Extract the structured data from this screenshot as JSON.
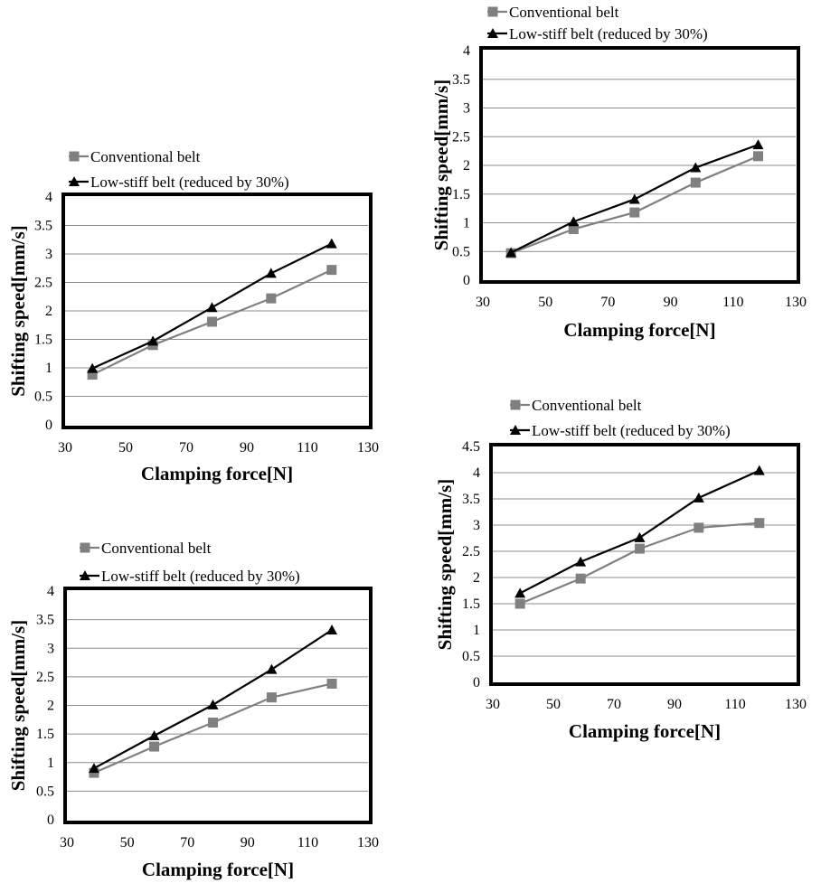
{
  "chart_data": [
    {
      "type": "line",
      "title": "",
      "xlabel": "Clamping force[N]",
      "ylabel": "Shifting speed[mm/s]",
      "xlim": [
        30,
        130
      ],
      "ylim": [
        0,
        4
      ],
      "xticks": [
        30,
        50,
        70,
        90,
        110,
        130
      ],
      "yticks": [
        0,
        0.5,
        1,
        1.5,
        2,
        2.5,
        3,
        3.5,
        4
      ],
      "ytick_labels": [
        "0",
        "0.5",
        "1",
        "1.5",
        "2",
        "2.5",
        "3",
        "3.5",
        "4"
      ],
      "grid": "horizontal",
      "legend": "top",
      "series": [
        {
          "name": "Conventional belt",
          "marker": "square",
          "color": "#808080",
          "x": [
            39,
            59,
            78.5,
            98,
            118
          ],
          "values": [
            0.88,
            1.4,
            1.81,
            2.22,
            2.72
          ]
        },
        {
          "name": "Low-stiff belt (reduced by 30%)",
          "marker": "triangle",
          "color": "#000000",
          "x": [
            39,
            59,
            78.5,
            98,
            118
          ],
          "values": [
            0.99,
            1.47,
            2.06,
            2.66,
            3.18
          ]
        }
      ]
    },
    {
      "type": "line",
      "title": "",
      "xlabel": "Clamping force[N]",
      "ylabel": "Shifting speed[mm/s]",
      "xlim": [
        30,
        130
      ],
      "ylim": [
        0,
        4
      ],
      "xticks": [
        30,
        50,
        70,
        90,
        110,
        130
      ],
      "yticks": [
        0,
        0.5,
        1,
        1.5,
        2,
        2.5,
        3,
        3.5,
        4
      ],
      "ytick_labels": [
        "0",
        "0.5",
        "1",
        "1.5",
        "2",
        "2.5",
        "3",
        "3.5",
        "4"
      ],
      "grid": "horizontal",
      "legend": "top",
      "series": [
        {
          "name": "Conventional belt",
          "marker": "square",
          "color": "#808080",
          "x": [
            39,
            59,
            78.5,
            98,
            118
          ],
          "values": [
            0.47,
            0.89,
            1.18,
            1.7,
            2.16
          ]
        },
        {
          "name": "Low-stiff belt (reduced by 30%)",
          "marker": "triangle",
          "color": "#000000",
          "x": [
            39,
            59,
            78.5,
            98,
            118
          ],
          "values": [
            0.48,
            1.02,
            1.41,
            1.96,
            2.36
          ]
        }
      ]
    },
    {
      "type": "line",
      "title": "",
      "xlabel": "Clamping force[N]",
      "ylabel": "Shifting speed[mm/s]",
      "xlim": [
        30,
        130
      ],
      "ylim": [
        0,
        4
      ],
      "xticks": [
        30,
        50,
        70,
        90,
        110,
        130
      ],
      "yticks": [
        0,
        0.5,
        1,
        1.5,
        2,
        2.5,
        3,
        3.5,
        4
      ],
      "ytick_labels": [
        "0",
        "0.5",
        "1",
        "1.5",
        "2",
        "2.5",
        "3",
        "3.5",
        "4"
      ],
      "grid": "horizontal",
      "legend": "top",
      "series": [
        {
          "name": "Conventional belt",
          "marker": "square",
          "color": "#808080",
          "x": [
            39,
            59,
            78.5,
            98,
            118
          ],
          "values": [
            0.82,
            1.28,
            1.7,
            2.14,
            2.38
          ]
        },
        {
          "name": "Low-stiff belt (reduced by 30%)",
          "marker": "triangle",
          "color": "#000000",
          "x": [
            39,
            59,
            78.5,
            98,
            118
          ],
          "values": [
            0.9,
            1.47,
            2.01,
            2.63,
            3.32
          ]
        }
      ]
    },
    {
      "type": "line",
      "title": "",
      "xlabel": "Clamping force[N]",
      "ylabel": "Shifting speed[mm/s]",
      "xlim": [
        30,
        130
      ],
      "ylim": [
        0,
        4.5
      ],
      "xticks": [
        30,
        50,
        70,
        90,
        110,
        130
      ],
      "yticks": [
        0,
        0.5,
        1,
        1.5,
        2,
        2.5,
        3,
        3.5,
        4,
        4.5
      ],
      "ytick_labels": [
        "0",
        "0.5",
        "1",
        "1.5",
        "2",
        "2.5",
        "3",
        "3.5",
        "4",
        "4.5"
      ],
      "grid": "horizontal",
      "legend": "top",
      "series": [
        {
          "name": "Conventional belt",
          "marker": "square",
          "color": "#808080",
          "x": [
            39,
            59,
            78.5,
            98,
            118
          ],
          "values": [
            1.5,
            1.98,
            2.55,
            2.95,
            3.04
          ]
        },
        {
          "name": "Low-stiff belt (reduced by 30%)",
          "marker": "triangle",
          "color": "#000000",
          "x": [
            39,
            59,
            78.5,
            98,
            118
          ],
          "values": [
            1.7,
            2.3,
            2.76,
            3.52,
            4.04
          ]
        }
      ]
    }
  ]
}
